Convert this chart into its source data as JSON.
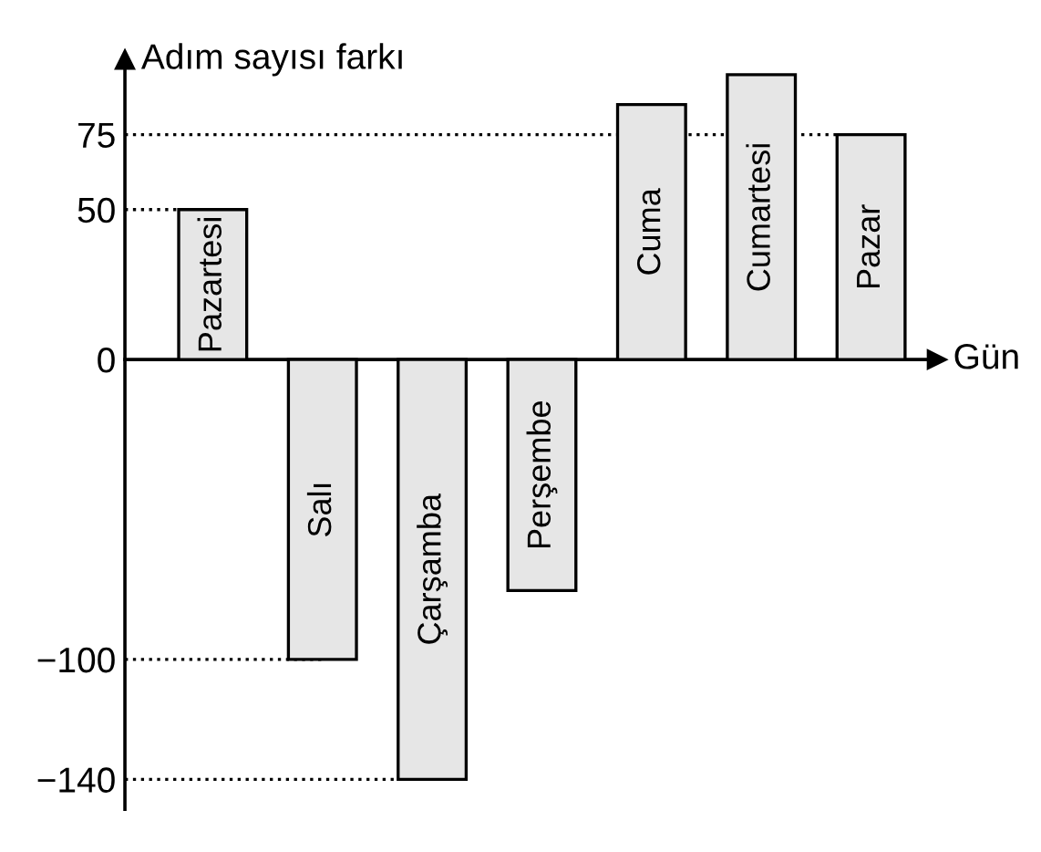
{
  "chart_data": {
    "type": "bar",
    "xlabel": "Gün",
    "ylabel": "Adım sayısı farkı",
    "categories": [
      "Pazartesi",
      "Salı",
      "Çarşamba",
      "Perşembe",
      "Cuma",
      "Cumartesi",
      "Pazar"
    ],
    "values": [
      50,
      -100,
      -140,
      -77,
      85,
      95,
      75
    ],
    "color": "#e6e6e6",
    "ylim": [
      -150,
      100
    ],
    "yticks": [
      75,
      50,
      0,
      {
        "value": -100,
        "label": "−100"
      },
      {
        "value": -140,
        "label": "−140"
      }
    ],
    "ref_lines": [
      {
        "axis": "y",
        "value": 75,
        "line_style": "dotted"
      },
      {
        "axis": "y",
        "value": 50,
        "line_style": "dotted"
      },
      {
        "axis": "y",
        "value": -100,
        "line_style": "dotted"
      },
      {
        "axis": "y",
        "value": -140,
        "line_style": "dotted"
      }
    ],
    "tick_labels": "y",
    "grid": false,
    "legend": false
  }
}
